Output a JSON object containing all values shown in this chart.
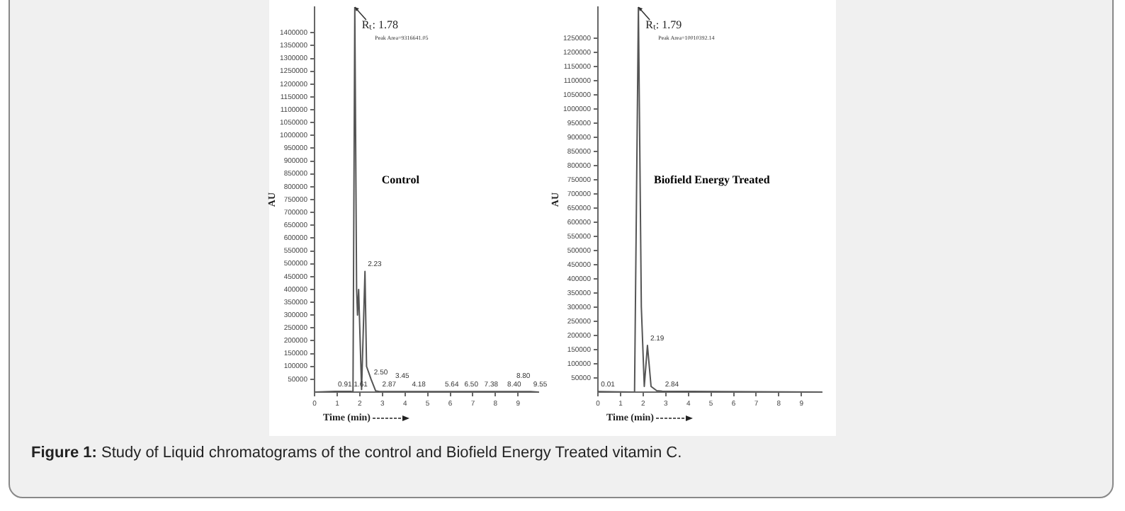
{
  "chart_data": [
    {
      "type": "line",
      "title": "Control",
      "xlabel": "Time (min)",
      "ylabel": "AU",
      "xlim": [
        0,
        9.9
      ],
      "xticks": [
        0,
        1,
        2,
        3,
        4,
        5,
        6,
        7,
        8,
        9
      ],
      "ylim": [
        0,
        1500000
      ],
      "yticks": [
        50000,
        100000,
        150000,
        200000,
        250000,
        300000,
        350000,
        400000,
        450000,
        500000,
        550000,
        600000,
        650000,
        700000,
        750000,
        800000,
        850000,
        900000,
        950000,
        1000000,
        1050000,
        1100000,
        1150000,
        1200000,
        1250000,
        1300000,
        1350000,
        1400000
      ],
      "series": [
        {
          "color": "#555555",
          "x": [
            0,
            0.91,
            1.61,
            1.7,
            1.78,
            1.86,
            1.9,
            1.95,
            2.08,
            2.23,
            2.3,
            2.5,
            2.7,
            2.87,
            3.45,
            4.18,
            5.64,
            6.5,
            7.38,
            8.4,
            8.8,
            9.55,
            9.9
          ],
          "values": [
            0,
            3000,
            3000,
            0,
            1500000,
            400000,
            300000,
            400000,
            10000,
            470000,
            100000,
            50000,
            5000,
            2000,
            2000,
            2000,
            2000,
            2000,
            2000,
            2000,
            2000,
            2000,
            0
          ]
        }
      ],
      "annotations": [
        "Peak Area=9316641.05",
        {
          "text": "Rₜ: 1.78",
          "x": 1.78,
          "y": 1500000
        },
        {
          "text": "0.91",
          "x": 0.91,
          "y": 3000
        },
        {
          "text": "1.61",
          "x": 1.61,
          "y": 3000
        },
        {
          "text": "2.23",
          "x": 2.23,
          "y": 470000
        },
        {
          "text": "2.50",
          "x": 2.5,
          "y": 50000
        },
        {
          "text": "2.87",
          "x": 2.87,
          "y": 2000
        },
        {
          "text": "3.45",
          "x": 3.45,
          "y": 2000
        },
        {
          "text": "4.18",
          "x": 4.18,
          "y": 2000
        },
        {
          "text": "5.64",
          "x": 5.64,
          "y": 2000
        },
        {
          "text": "6.50",
          "x": 6.5,
          "y": 2000
        },
        {
          "text": "7.38",
          "x": 7.38,
          "y": 2000
        },
        {
          "text": "8.40",
          "x": 8.4,
          "y": 2000
        },
        {
          "text": "8.80",
          "x": 8.8,
          "y": 2000
        },
        {
          "text": "9.55",
          "x": 9.55,
          "y": 2000
        }
      ]
    },
    {
      "type": "line",
      "title": "Biofield Energy Treated",
      "xlabel": "Time (min)",
      "ylabel": "AU",
      "xlim": [
        0,
        9.9
      ],
      "xticks": [
        0,
        1,
        2,
        3,
        4,
        5,
        6,
        7,
        8,
        9
      ],
      "ylim": [
        0,
        1360000
      ],
      "yticks": [
        50000,
        100000,
        150000,
        200000,
        250000,
        300000,
        350000,
        400000,
        450000,
        500000,
        550000,
        600000,
        650000,
        700000,
        750000,
        800000,
        850000,
        900000,
        950000,
        1000000,
        1050000,
        1100000,
        1150000,
        1200000,
        1250000
      ],
      "series": [
        {
          "color": "#555555",
          "x": [
            0,
            0.01,
            1.62,
            1.79,
            1.92,
            2.05,
            2.19,
            2.35,
            2.6,
            2.84,
            9.9
          ],
          "values": [
            0,
            2000,
            0,
            1360000,
            300000,
            20000,
            165000,
            20000,
            5000,
            3000,
            0
          ]
        }
      ],
      "annotations": [
        "Peak Area=10010392.14",
        "Figure 1: Study of Liquid chromatograms of the control and Biofield Energy Treated vitamin C.",
        {
          "text": "Rₜ: 1.79",
          "x": 1.79,
          "y": 1360000
        },
        {
          "text": "0.01",
          "x": 0.01,
          "y": 2000
        },
        {
          "text": "2.19",
          "x": 2.19,
          "y": 165000
        },
        {
          "text": "2.84",
          "x": 2.84,
          "y": 3000
        }
      ]
    }
  ]
}
